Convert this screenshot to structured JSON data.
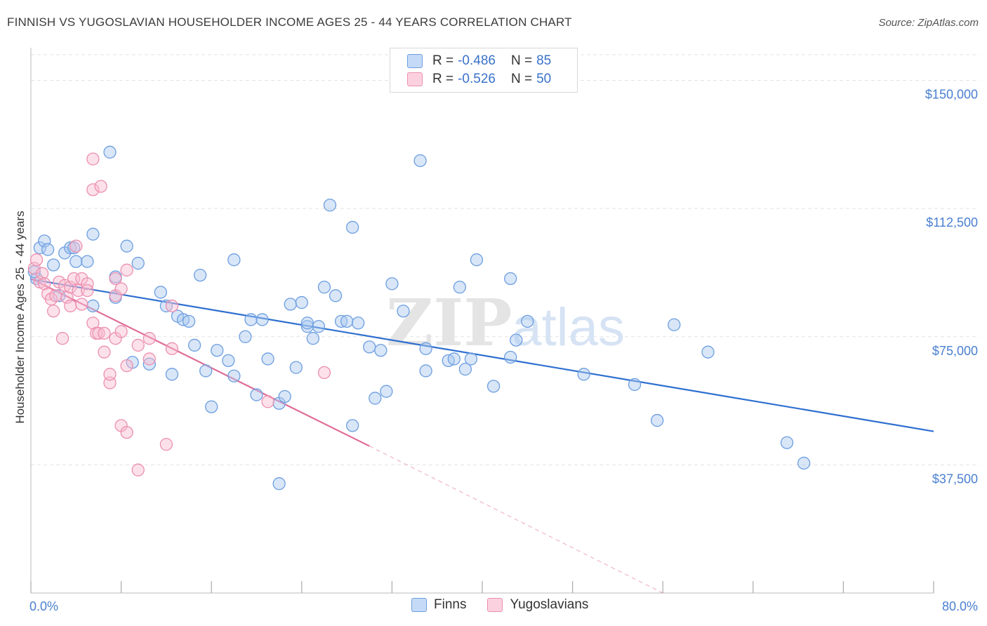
{
  "title": "FINNISH VS YUGOSLAVIAN HOUSEHOLDER INCOME AGES 25 - 44 YEARS CORRELATION CHART",
  "source": "Source: ZipAtlas.com",
  "legend": {
    "rows": [
      {
        "r_label": "R =",
        "r_value": "-0.486",
        "n_label": "N =",
        "n_value": "85"
      },
      {
        "r_label": "R =",
        "r_value": "-0.526",
        "n_label": "N =",
        "n_value": "50"
      }
    ]
  },
  "bottom_legend": [
    "Finns",
    "Yugoslavians"
  ],
  "colors": {
    "finns_fill": "#a8c8f0",
    "finns_stroke": "#6d9ee0",
    "finns_line": "#2e6fd0",
    "yugo_fill": "#f8bcd0",
    "yugo_stroke": "#ec8fb0",
    "yugo_line": "#e06c98",
    "tick_text": "#4a7fd0",
    "grid": "#e3e3e3"
  },
  "watermark": "ZIPatlas",
  "chart_data": {
    "type": "scatter",
    "xlabel": "",
    "ylabel": "Householder Income Ages 25 - 44 years",
    "x_unit": "%",
    "xlim": [
      0,
      80
    ],
    "ylim": [
      0,
      157500
    ],
    "x_tick_labels": [
      "0.0%",
      "80.0%"
    ],
    "y_ticks": [
      37500,
      75000,
      112500,
      150000
    ],
    "y_tick_labels": [
      "$37,500",
      "$75,000",
      "$112,500",
      "$150,000"
    ],
    "grid": true,
    "legend_position": "top-center",
    "series": [
      {
        "name": "Finns",
        "trendline": {
          "x": [
            0,
            80
          ],
          "y": [
            91800,
            47300
          ]
        },
        "points": [
          [
            0.5,
            92000
          ],
          [
            0.8,
            101000
          ],
          [
            1.2,
            103000
          ],
          [
            1.5,
            100500
          ],
          [
            2.0,
            96000
          ],
          [
            2.5,
            87000
          ],
          [
            3.0,
            99500
          ],
          [
            3.5,
            101000
          ],
          [
            3.8,
            101000
          ],
          [
            4.0,
            97000
          ],
          [
            5.0,
            97000
          ],
          [
            5.5,
            105000
          ],
          [
            5.5,
            84000
          ],
          [
            7.0,
            129000
          ],
          [
            7.5,
            92500
          ],
          [
            7.5,
            86500
          ],
          [
            8.5,
            101500
          ],
          [
            9.0,
            67500
          ],
          [
            9.5,
            96500
          ],
          [
            10.5,
            67000
          ],
          [
            11.5,
            88000
          ],
          [
            12.0,
            84000
          ],
          [
            12.5,
            64000
          ],
          [
            13.0,
            81000
          ],
          [
            13.5,
            80000
          ],
          [
            14.0,
            79500
          ],
          [
            14.5,
            72500
          ],
          [
            15.0,
            93000
          ],
          [
            15.5,
            65000
          ],
          [
            16.0,
            54500
          ],
          [
            16.5,
            71000
          ],
          [
            17.5,
            68000
          ],
          [
            18.0,
            63500
          ],
          [
            18.0,
            97500
          ],
          [
            19.0,
            75000
          ],
          [
            19.5,
            80000
          ],
          [
            20.0,
            58000
          ],
          [
            20.5,
            80000
          ],
          [
            21.0,
            68500
          ],
          [
            22.0,
            55500
          ],
          [
            22.5,
            57500
          ],
          [
            22.0,
            32000
          ],
          [
            23.0,
            84500
          ],
          [
            23.5,
            66000
          ],
          [
            24.0,
            85000
          ],
          [
            24.5,
            78000
          ],
          [
            24.5,
            79000
          ],
          [
            25.0,
            74500
          ],
          [
            25.5,
            78000
          ],
          [
            26.0,
            89500
          ],
          [
            26.5,
            113500
          ],
          [
            27.0,
            87000
          ],
          [
            27.5,
            79500
          ],
          [
            28.0,
            79500
          ],
          [
            28.5,
            107000
          ],
          [
            28.5,
            49000
          ],
          [
            29.0,
            79000
          ],
          [
            30.0,
            72000
          ],
          [
            30.5,
            57000
          ],
          [
            31.0,
            71000
          ],
          [
            31.5,
            59000
          ],
          [
            32.0,
            90500
          ],
          [
            33.0,
            82500
          ],
          [
            34.5,
            126500
          ],
          [
            35.0,
            71500
          ],
          [
            35.0,
            65000
          ],
          [
            37.0,
            68000
          ],
          [
            37.5,
            68500
          ],
          [
            38.0,
            89500
          ],
          [
            38.5,
            65500
          ],
          [
            39.0,
            68500
          ],
          [
            39.5,
            97500
          ],
          [
            41.0,
            60500
          ],
          [
            42.5,
            69000
          ],
          [
            42.5,
            92000
          ],
          [
            43.0,
            74000
          ],
          [
            44.0,
            79500
          ],
          [
            49.0,
            64000
          ],
          [
            53.5,
            61000
          ],
          [
            55.5,
            50500
          ],
          [
            57.0,
            78500
          ],
          [
            60.0,
            70500
          ],
          [
            67.0,
            44000
          ],
          [
            68.5,
            38000
          ],
          [
            0.3,
            94000
          ]
        ]
      },
      {
        "name": "Yugoslavians",
        "trendline": {
          "x": [
            0,
            30
          ],
          "y": [
            92000,
            43000
          ],
          "dashed_to": {
            "x": [
              30,
              56
            ],
            "y": [
              43000,
              0
            ]
          }
        },
        "points": [
          [
            0.3,
            95000
          ],
          [
            0.5,
            97500
          ],
          [
            0.8,
            91000
          ],
          [
            1.0,
            93500
          ],
          [
            1.2,
            90500
          ],
          [
            1.5,
            87500
          ],
          [
            1.8,
            86000
          ],
          [
            2.0,
            82500
          ],
          [
            2.2,
            87000
          ],
          [
            2.5,
            91000
          ],
          [
            2.8,
            74500
          ],
          [
            3.0,
            90000
          ],
          [
            3.2,
            86500
          ],
          [
            3.5,
            89500
          ],
          [
            3.5,
            84000
          ],
          [
            3.8,
            92000
          ],
          [
            4.0,
            101500
          ],
          [
            4.2,
            88500
          ],
          [
            4.5,
            84500
          ],
          [
            4.5,
            92000
          ],
          [
            5.0,
            90500
          ],
          [
            5.0,
            88500
          ],
          [
            5.5,
            79000
          ],
          [
            5.5,
            127000
          ],
          [
            5.5,
            118000
          ],
          [
            5.8,
            76000
          ],
          [
            6.0,
            76000
          ],
          [
            6.2,
            119000
          ],
          [
            6.5,
            76000
          ],
          [
            6.5,
            70500
          ],
          [
            7.0,
            61500
          ],
          [
            7.0,
            64000
          ],
          [
            7.5,
            92000
          ],
          [
            7.5,
            74500
          ],
          [
            7.5,
            87000
          ],
          [
            8.0,
            89000
          ],
          [
            8.0,
            76500
          ],
          [
            8.0,
            49000
          ],
          [
            8.5,
            66500
          ],
          [
            8.5,
            47000
          ],
          [
            8.5,
            94500
          ],
          [
            9.5,
            72500
          ],
          [
            9.5,
            36000
          ],
          [
            10.5,
            68500
          ],
          [
            10.5,
            74500
          ],
          [
            12.0,
            43500
          ],
          [
            12.5,
            84000
          ],
          [
            12.5,
            71500
          ],
          [
            21.0,
            56000
          ],
          [
            26.0,
            64500
          ]
        ]
      }
    ]
  }
}
